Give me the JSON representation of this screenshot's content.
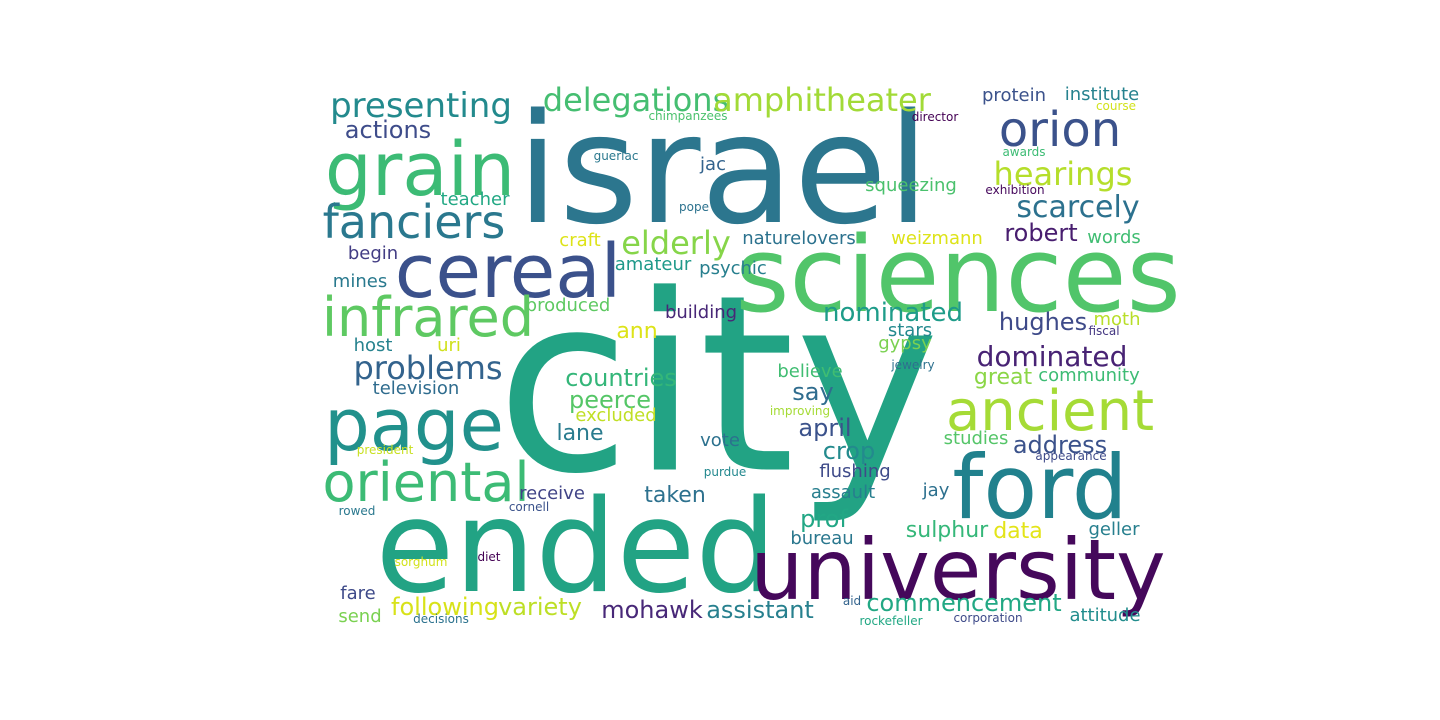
{
  "word_cloud": {
    "words": [
      {
        "text": "city",
        "color": "#22a384"
      },
      {
        "text": "israel",
        "color": "#2c768e"
      },
      {
        "text": "ended",
        "color": "#22a384"
      },
      {
        "text": "university",
        "color": "#45085b"
      },
      {
        "text": "sciences",
        "color": "#51c56a"
      },
      {
        "text": "ford",
        "color": "#21818d"
      },
      {
        "text": "cereal",
        "color": "#3b518b"
      },
      {
        "text": "grain",
        "color": "#3cbb75"
      },
      {
        "text": "page",
        "color": "#21918c"
      },
      {
        "text": "ancient",
        "color": "#a5db36"
      },
      {
        "text": "oriental",
        "color": "#3cbb75"
      },
      {
        "text": "infrared",
        "color": "#5ec962"
      },
      {
        "text": "fanciers",
        "color": "#2a788e"
      },
      {
        "text": "orion",
        "color": "#3b528b"
      },
      {
        "text": "presenting",
        "color": "#238a8d"
      },
      {
        "text": "delegations",
        "color": "#45be71"
      },
      {
        "text": "amphitheater",
        "color": "#a2da37"
      },
      {
        "text": "hearings",
        "color": "#b5de2b"
      },
      {
        "text": "scarcely",
        "color": "#2c718e"
      },
      {
        "text": "elderly",
        "color": "#86d549"
      },
      {
        "text": "problems",
        "color": "#33638d"
      },
      {
        "text": "dominated",
        "color": "#482374"
      },
      {
        "text": "nominated",
        "color": "#1e9c89"
      },
      {
        "text": "countries",
        "color": "#34b679"
      },
      {
        "text": "hughes",
        "color": "#3e4a89"
      },
      {
        "text": "address",
        "color": "#3b528b"
      },
      {
        "text": "peerce",
        "color": "#55c667"
      },
      {
        "text": "actions",
        "color": "#3e4c8a"
      },
      {
        "text": "robert",
        "color": "#481d6f"
      },
      {
        "text": "following",
        "color": "#d8e219"
      },
      {
        "text": "variety",
        "color": "#bddf26"
      },
      {
        "text": "mohawk",
        "color": "#482878"
      },
      {
        "text": "assistant",
        "color": "#27808e"
      },
      {
        "text": "commencement",
        "color": "#22a884"
      },
      {
        "text": "taken",
        "color": "#2d718e"
      },
      {
        "text": "crop",
        "color": "#238a8d"
      },
      {
        "text": "april",
        "color": "#3b528b"
      },
      {
        "text": "say",
        "color": "#2f6c8e"
      },
      {
        "text": "prof",
        "color": "#22a785"
      },
      {
        "text": "data",
        "color": "#e3e418"
      },
      {
        "text": "sulphur",
        "color": "#35b779"
      },
      {
        "text": "great",
        "color": "#8bd646"
      },
      {
        "text": "lane",
        "color": "#297b8e"
      },
      {
        "text": "ann",
        "color": "#dde318"
      },
      {
        "text": "jac",
        "color": "#33638d"
      },
      {
        "text": "protein",
        "color": "#3b528b"
      },
      {
        "text": "institute",
        "color": "#26828e"
      },
      {
        "text": "naturelovers",
        "color": "#2c728e"
      },
      {
        "text": "psychic",
        "color": "#277f8e"
      },
      {
        "text": "produced",
        "color": "#5ec962"
      },
      {
        "text": "building",
        "color": "#482777"
      },
      {
        "text": "squeezing",
        "color": "#4ac16d"
      },
      {
        "text": "weizmann",
        "color": "#dde318"
      },
      {
        "text": "stars",
        "color": "#23898e"
      },
      {
        "text": "gypsy",
        "color": "#7ad151"
      },
      {
        "text": "moth",
        "color": "#b8de29"
      },
      {
        "text": "community",
        "color": "#3dbc74"
      },
      {
        "text": "believe",
        "color": "#40bd72"
      },
      {
        "text": "flushing",
        "color": "#3e4a89"
      },
      {
        "text": "assault",
        "color": "#277e8e"
      },
      {
        "text": "jay",
        "color": "#2d708e"
      },
      {
        "text": "studies",
        "color": "#54c568"
      },
      {
        "text": "geller",
        "color": "#277f8e"
      },
      {
        "text": "bureau",
        "color": "#2a778e"
      },
      {
        "text": "vote",
        "color": "#2c718e"
      },
      {
        "text": "receive",
        "color": "#414487"
      },
      {
        "text": "fare",
        "color": "#3e4a89"
      },
      {
        "text": "send",
        "color": "#7ad151"
      },
      {
        "text": "attitude",
        "color": "#228d8d"
      },
      {
        "text": "television",
        "color": "#2f6c8e"
      },
      {
        "text": "host",
        "color": "#26828e"
      },
      {
        "text": "begin",
        "color": "#433d84"
      },
      {
        "text": "mines",
        "color": "#29798e"
      },
      {
        "text": "teacher",
        "color": "#22a884"
      },
      {
        "text": "craft",
        "color": "#dde318"
      },
      {
        "text": "amateur",
        "color": "#1f998a"
      },
      {
        "text": "excluded",
        "color": "#c0df25"
      },
      {
        "text": "words",
        "color": "#40bd72"
      },
      {
        "text": "uri",
        "color": "#d0e11c"
      },
      {
        "text": "chimpanzees",
        "color": "#4ac16d"
      },
      {
        "text": "director",
        "color": "#440154"
      },
      {
        "text": "course",
        "color": "#d2e21b"
      },
      {
        "text": "guerlac",
        "color": "#2a788e"
      },
      {
        "text": "awards",
        "color": "#3dbc74"
      },
      {
        "text": "exhibition",
        "color": "#46085c"
      },
      {
        "text": "pope",
        "color": "#2c728e"
      },
      {
        "text": "fiscal",
        "color": "#453882"
      },
      {
        "text": "jewelry",
        "color": "#2d708e"
      },
      {
        "text": "improving",
        "color": "#a5db36"
      },
      {
        "text": "appearance",
        "color": "#3e4a89"
      },
      {
        "text": "president",
        "color": "#c8e020"
      },
      {
        "text": "purdue",
        "color": "#23888e"
      },
      {
        "text": "rowed",
        "color": "#2a788e"
      },
      {
        "text": "cornell",
        "color": "#3b528b"
      },
      {
        "text": "diet",
        "color": "#440154"
      },
      {
        "text": "sorghum",
        "color": "#d2e21b"
      },
      {
        "text": "aid",
        "color": "#33638d"
      },
      {
        "text": "rockefeller",
        "color": "#22a884"
      },
      {
        "text": "corporation",
        "color": "#3e4a89"
      },
      {
        "text": "decisions",
        "color": "#2c728e"
      }
    ]
  }
}
